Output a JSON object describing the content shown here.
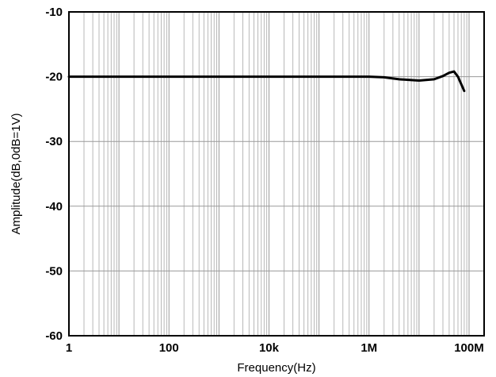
{
  "chart_data": {
    "type": "line",
    "title": "",
    "xlabel": "Frequency(Hz)",
    "ylabel": "Amplitude(dB,0dB=1V)",
    "x_scale": "log",
    "xlim": [
      1,
      200000000
    ],
    "ylim": [
      -60,
      -10
    ],
    "x_ticks": [
      {
        "value": 1,
        "label": "1"
      },
      {
        "value": 100,
        "label": "100"
      },
      {
        "value": 10000,
        "label": "10k"
      },
      {
        "value": 1000000,
        "label": "1M"
      },
      {
        "value": 100000000,
        "label": "100M"
      }
    ],
    "y_ticks": [
      {
        "value": -10,
        "label": "-10"
      },
      {
        "value": -20,
        "label": "-20"
      },
      {
        "value": -30,
        "label": "-30"
      },
      {
        "value": -40,
        "label": "-40"
      },
      {
        "value": -50,
        "label": "-50"
      },
      {
        "value": -60,
        "label": "-60"
      }
    ],
    "grid": true,
    "series": [
      {
        "color": "#000000",
        "points": [
          [
            1,
            -20.0
          ],
          [
            1000000,
            -20.0
          ],
          [
            2000000,
            -20.1
          ],
          [
            4000000,
            -20.4
          ],
          [
            10000000,
            -20.6
          ],
          [
            20000000,
            -20.4
          ],
          [
            30000000,
            -19.9
          ],
          [
            40000000,
            -19.4
          ],
          [
            50000000,
            -19.2
          ],
          [
            60000000,
            -20.0
          ],
          [
            80000000,
            -22.2
          ]
        ]
      }
    ]
  }
}
